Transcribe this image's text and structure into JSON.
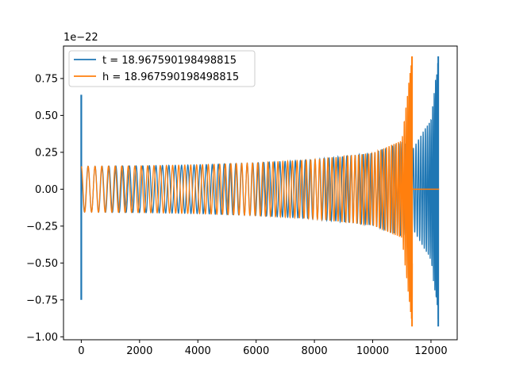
{
  "chart_data": {
    "type": "line",
    "title": "",
    "xlabel": "",
    "ylabel": "",
    "offset_text": "1e−22",
    "xlim": [
      -610,
      12900
    ],
    "ylim": [
      -1.02,
      0.97
    ],
    "xticks": [
      0,
      2000,
      4000,
      6000,
      8000,
      10000,
      12000
    ],
    "xtick_labels": [
      "0",
      "2000",
      "4000",
      "6000",
      "8000",
      "10000",
      "12000"
    ],
    "yticks": [
      -1.0,
      -0.75,
      -0.5,
      -0.25,
      0.0,
      0.25,
      0.5,
      0.75
    ],
    "ytick_labels": [
      "−1.00",
      "−0.75",
      "−0.50",
      "−0.25",
      "0.00",
      "0.25",
      "0.50",
      "0.75"
    ],
    "grid": false,
    "legend_position": "top-left",
    "series": [
      {
        "name": "t = 18.967590198498815",
        "color": "#1f77b4",
        "description_points": {
          "initial_spike": {
            "x": 0,
            "max": 0.64,
            "min": -0.75
          },
          "envelope": [
            {
              "x": 0,
              "amp": 0.155
            },
            {
              "x": 2000,
              "amp": 0.158
            },
            {
              "x": 4000,
              "amp": 0.165
            },
            {
              "x": 6000,
              "amp": 0.178
            },
            {
              "x": 8000,
              "amp": 0.2
            },
            {
              "x": 10000,
              "amp": 0.245
            },
            {
              "x": 11000,
              "amp": 0.32
            },
            {
              "x": 11400,
              "amp": 0.28
            },
            {
              "x": 12000,
              "amp": 0.48
            },
            {
              "x": 12250,
              "amp": 0.9
            }
          ],
          "end_x": 12280
        }
      },
      {
        "name": "h = 18.967590198498815",
        "color": "#ff7f0e",
        "description_points": {
          "envelope": [
            {
              "x": 0,
              "amp": 0.155
            },
            {
              "x": 2000,
              "amp": 0.158
            },
            {
              "x": 4000,
              "amp": 0.165
            },
            {
              "x": 6000,
              "amp": 0.178
            },
            {
              "x": 8000,
              "amp": 0.2
            },
            {
              "x": 10000,
              "amp": 0.245
            },
            {
              "x": 11000,
              "amp": 0.33
            },
            {
              "x": 11350,
              "amp": 0.92
            }
          ],
          "merger_x": 11370,
          "flat_until_x": 12280
        }
      }
    ]
  }
}
